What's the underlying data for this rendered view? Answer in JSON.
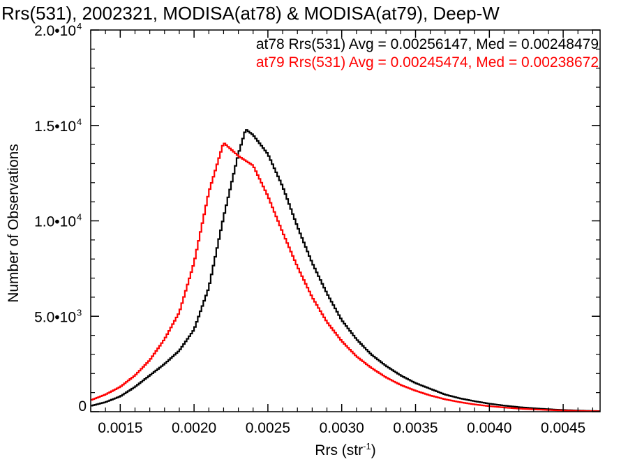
{
  "chart_data": {
    "type": "line",
    "style": "step-histogram",
    "title": "Rrs(531), 2002321, MODISA(at78) & MODISA(at79), Deep-W",
    "xlabel": "Rrs (str",
    "xlabel_sup": "-1",
    "xlabel_close": ")",
    "ylabel": "Number of Observations",
    "xlim": [
      0.0013,
      0.00475
    ],
    "ylim": [
      0,
      20000
    ],
    "grid": false,
    "x_ticks": [
      {
        "value": 0.0015,
        "label": "0.0015"
      },
      {
        "value": 0.002,
        "label": "0.0020"
      },
      {
        "value": 0.0025,
        "label": "0.0025"
      },
      {
        "value": 0.003,
        "label": "0.0030"
      },
      {
        "value": 0.0035,
        "label": "0.0035"
      },
      {
        "value": 0.004,
        "label": "0.0040"
      },
      {
        "value": 0.0045,
        "label": "0.0045"
      }
    ],
    "y_ticks": [
      {
        "value": 0,
        "mant": "0",
        "exp": ""
      },
      {
        "value": 5000,
        "mant": "5.0•10",
        "exp": "3"
      },
      {
        "value": 10000,
        "mant": "1.0•10",
        "exp": "4"
      },
      {
        "value": 15000,
        "mant": "1.5•10",
        "exp": "4"
      },
      {
        "value": 20000,
        "mant": "2.0•10",
        "exp": "4"
      }
    ],
    "annotations": [
      {
        "text": "at78 Rrs(531) Avg = 0.00256147, Med = 0.00248479",
        "color": "#000000"
      },
      {
        "text": "at79 Rrs(531) Avg = 0.00245474, Med = 0.00238672",
        "color": "#ff0000"
      }
    ],
    "series": [
      {
        "color": "#000000",
        "points": [
          [
            0.0013,
            300
          ],
          [
            0.0014,
            500
          ],
          [
            0.0015,
            800
          ],
          [
            0.0016,
            1300
          ],
          [
            0.0017,
            1900
          ],
          [
            0.0018,
            2500
          ],
          [
            0.0019,
            3200
          ],
          [
            0.002,
            4300
          ],
          [
            0.0021,
            6500
          ],
          [
            0.0022,
            10200
          ],
          [
            0.0023,
            13500
          ],
          [
            0.00235,
            14800
          ],
          [
            0.0024,
            14500
          ],
          [
            0.0025,
            13500
          ],
          [
            0.0026,
            11800
          ],
          [
            0.0027,
            9700
          ],
          [
            0.0028,
            7800
          ],
          [
            0.0029,
            6200
          ],
          [
            0.003,
            4800
          ],
          [
            0.0031,
            3800
          ],
          [
            0.0032,
            3000
          ],
          [
            0.0033,
            2400
          ],
          [
            0.0034,
            1900
          ],
          [
            0.0035,
            1500
          ],
          [
            0.0036,
            1200
          ],
          [
            0.0037,
            900
          ],
          [
            0.0038,
            700
          ],
          [
            0.0039,
            550
          ],
          [
            0.004,
            420
          ],
          [
            0.0041,
            320
          ],
          [
            0.0042,
            240
          ],
          [
            0.0043,
            180
          ],
          [
            0.0044,
            130
          ],
          [
            0.0045,
            90
          ],
          [
            0.0046,
            60
          ],
          [
            0.0047,
            40
          ],
          [
            0.00475,
            30
          ]
        ]
      },
      {
        "color": "#ff0000",
        "points": [
          [
            0.0013,
            600
          ],
          [
            0.0014,
            900
          ],
          [
            0.0015,
            1300
          ],
          [
            0.0016,
            1900
          ],
          [
            0.0017,
            2700
          ],
          [
            0.0018,
            3800
          ],
          [
            0.0019,
            5200
          ],
          [
            0.002,
            7800
          ],
          [
            0.0021,
            11500
          ],
          [
            0.0022,
            14100
          ],
          [
            0.0023,
            13400
          ],
          [
            0.0024,
            12900
          ],
          [
            0.0025,
            11300
          ],
          [
            0.0026,
            9400
          ],
          [
            0.0027,
            7600
          ],
          [
            0.0028,
            6000
          ],
          [
            0.0029,
            4700
          ],
          [
            0.003,
            3700
          ],
          [
            0.0031,
            2900
          ],
          [
            0.0032,
            2300
          ],
          [
            0.0033,
            1800
          ],
          [
            0.0034,
            1400
          ],
          [
            0.0035,
            1100
          ],
          [
            0.0036,
            850
          ],
          [
            0.0037,
            650
          ],
          [
            0.0038,
            500
          ],
          [
            0.0039,
            380
          ],
          [
            0.004,
            290
          ],
          [
            0.0041,
            220
          ],
          [
            0.0042,
            160
          ],
          [
            0.0043,
            120
          ],
          [
            0.0044,
            90
          ],
          [
            0.0045,
            60
          ],
          [
            0.0046,
            40
          ],
          [
            0.0047,
            30
          ],
          [
            0.00475,
            20
          ]
        ]
      }
    ]
  }
}
